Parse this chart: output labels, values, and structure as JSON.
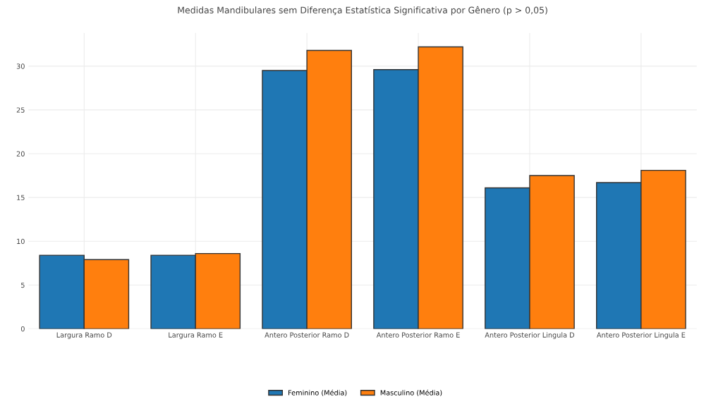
{
  "chart_data": {
    "type": "bar",
    "title": "Medidas Mandibulares sem Diferença Estatística Significativa por Gênero (p > 0,05)",
    "categories": [
      "Largura Ramo D",
      "Largura Ramo E",
      "Antero Posterior Ramo D",
      "Antero Posterior Ramo E",
      "Antero Posterior Lingula D",
      "Antero Posterior Lingula E"
    ],
    "series": [
      {
        "name": "Feminino (Média)",
        "color": "#1f77b4",
        "values": [
          8.4,
          8.4,
          29.5,
          29.6,
          16.1,
          16.7
        ]
      },
      {
        "name": "Masculino (Média)",
        "color": "#ff7f0e",
        "values": [
          7.9,
          8.6,
          31.8,
          32.2,
          17.5,
          18.1
        ]
      }
    ],
    "ylim": [
      0,
      33.8
    ],
    "yticks": [
      0,
      5,
      10,
      15,
      20,
      25,
      30
    ],
    "grid": true,
    "legend": "bottom"
  }
}
